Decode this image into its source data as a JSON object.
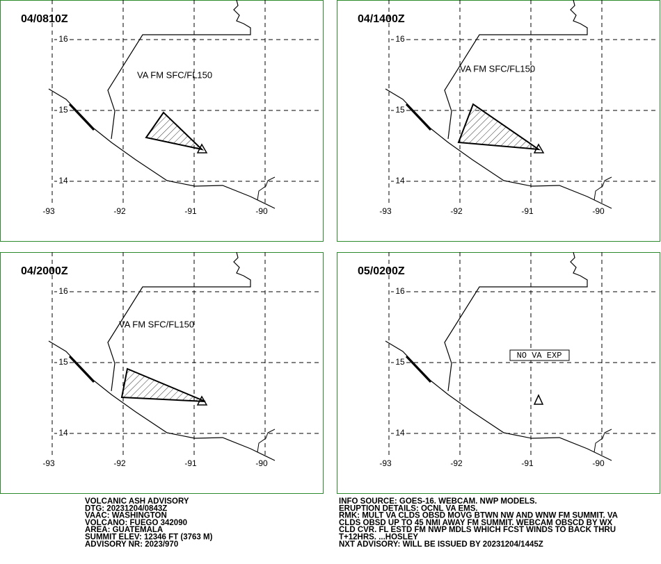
{
  "panels": [
    {
      "time": "04/0810Z",
      "label": "VA FM SFC/FL150"
    },
    {
      "time": "04/1400Z",
      "label": "VA FM SFC/FL150"
    },
    {
      "time": "04/2000Z",
      "label": "VA FM SFC/FL150"
    },
    {
      "time": "05/0200Z",
      "label": "NO VA EXP"
    }
  ],
  "lon_labels": [
    "-93",
    "-92",
    "-91",
    "-90"
  ],
  "lat_labels": [
    "16",
    "15",
    "14"
  ],
  "advisory_left": [
    "VOLCANIC ASH ADVISORY",
    "DTG: 20231204/0843Z",
    "VAAC: WASHINGTON",
    "VOLCANO: FUEGO 342090",
    "AREA: GUATEMALA",
    "SUMMIT ELEV: 12346 FT (3763 M)",
    "ADVISORY NR: 2023/970"
  ],
  "advisory_right": [
    "INFO SOURCE: GOES-16. WEBCAM. NWP MODELS.",
    "ERUPTION DETAILS: OCNL VA EMS.",
    "RMK: MULT VA CLDS OBSD MOVG BTWN NW AND WNW FM SUMMIT. VA",
    "CLDS OBSD UP TO 45 NMI AWAY FM SUMMIT. WEBCAM OBSCD BY WX",
    "CLD CVR. FL ESTD FM NWP MDLS WHICH FCST WINDS TO BACK THRU",
    "T+12HRS. ...HOSLEY",
    "NXT ADVISORY: WILL BE ISSUED BY 20231204/1445Z"
  ]
}
